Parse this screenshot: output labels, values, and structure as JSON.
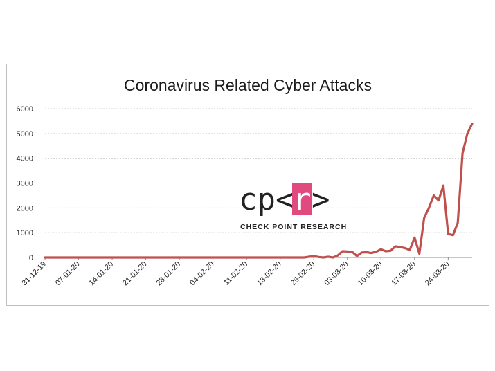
{
  "chart_data": {
    "type": "line",
    "title": "Coronavirus Related Cyber Attacks",
    "xlabel": "",
    "ylabel": "",
    "ylim": [
      0,
      6000
    ],
    "yticks": [
      0,
      1000,
      2000,
      3000,
      4000,
      5000,
      6000
    ],
    "grid": true,
    "legend": "none",
    "x_tick_labels": [
      "31-12-19",
      "07-01-20",
      "14-01-20",
      "21-01-20",
      "28-01-20",
      "04-02-20",
      "11-02-20",
      "18-02-20",
      "25-02-20",
      "03-03-20",
      "10-03-20",
      "17-03-20",
      "24-03-20"
    ],
    "x": [
      "31-12-19",
      "03-01-20",
      "06-01-20",
      "09-01-20",
      "12-01-20",
      "15-01-20",
      "18-01-20",
      "21-01-20",
      "24-01-20",
      "27-01-20",
      "30-01-20",
      "02-02-20",
      "05-02-20",
      "08-02-20",
      "11-02-20",
      "14-02-20",
      "17-02-20",
      "20-02-20",
      "23-02-20",
      "24-02-20",
      "25-02-20",
      "26-02-20",
      "27-02-20",
      "28-02-20",
      "29-02-20",
      "01-03-20",
      "02-03-20",
      "03-03-20",
      "04-03-20",
      "05-03-20",
      "06-03-20",
      "07-03-20",
      "08-03-20",
      "09-03-20",
      "10-03-20",
      "11-03-20",
      "12-03-20",
      "13-03-20",
      "14-03-20",
      "15-03-20",
      "16-03-20",
      "17-03-20",
      "18-03-20",
      "19-03-20",
      "20-03-20",
      "21-03-20",
      "22-03-20",
      "23-03-20",
      "24-03-20",
      "25-03-20",
      "26-03-20",
      "27-03-20",
      "28-03-20",
      "29-03-20"
    ],
    "series": [
      {
        "color": "#c0504d",
        "values": [
          0,
          0,
          0,
          0,
          0,
          0,
          0,
          0,
          0,
          0,
          0,
          0,
          0,
          0,
          0,
          0,
          0,
          0,
          0,
          30,
          60,
          20,
          0,
          30,
          0,
          80,
          250,
          240,
          230,
          60,
          200,
          210,
          180,
          230,
          330,
          250,
          270,
          450,
          420,
          380,
          300,
          800,
          150,
          1600,
          2000,
          2500,
          2300,
          2900,
          950,
          900,
          1400,
          4200,
          5000,
          5400
        ]
      }
    ]
  },
  "watermark": {
    "logo_left": "cp<",
    "logo_r": "r",
    "logo_right": ">",
    "subtitle": "CHECK POINT RESEARCH",
    "accent": "#e04a7f"
  }
}
